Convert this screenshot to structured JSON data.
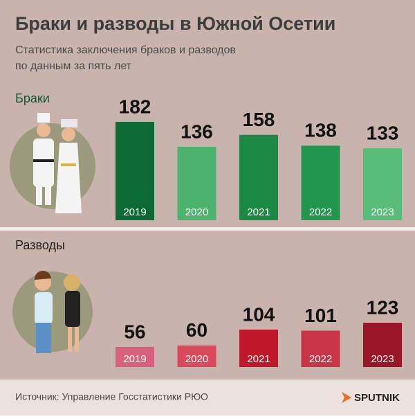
{
  "title": "Браки и разводы в Южной Осетии",
  "subtitle": [
    "Статистика заключения браков и разводов",
    "по данным за пять лет"
  ],
  "chart_data": [
    {
      "type": "bar",
      "title": "Браки",
      "categories": [
        "2019",
        "2020",
        "2021",
        "2022",
        "2023"
      ],
      "values": [
        182,
        136,
        158,
        138,
        133
      ],
      "colors": [
        "#0b6a34",
        "#4cb36e",
        "#1c8a45",
        "#22964f",
        "#57bd78"
      ]
    },
    {
      "type": "bar",
      "title": "Разводы",
      "categories": [
        "2019",
        "2020",
        "2021",
        "2022",
        "2023"
      ],
      "values": [
        56,
        60,
        104,
        101,
        123
      ],
      "colors": [
        "#d9607a",
        "#da4a5c",
        "#c0182a",
        "#c93448",
        "#9a1527"
      ]
    }
  ],
  "source": "Источник: Управление Госстатистики РЮО",
  "logo": "SPUTNIK"
}
